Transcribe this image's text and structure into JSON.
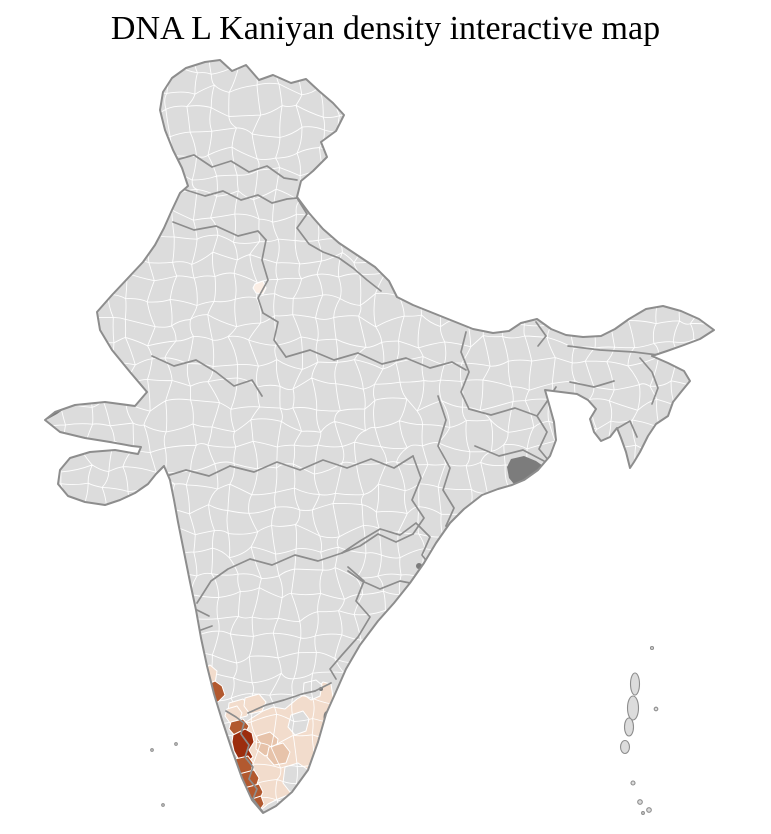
{
  "title": "DNA L Kaniyan density interactive map",
  "map": {
    "type": "choropleth",
    "subject": "district density map of India",
    "sea_color": "#ffffff",
    "land_color": "#dcdcdc",
    "district_border_color": "#ffffff",
    "state_border_color": "#8d8d8d",
    "coast_border_color": "#8d8d8d",
    "water_body_color": "#7c7c7c",
    "palette": {
      "none": "#dcdcdc",
      "trace": "#fbeee5",
      "low": "#f2dccc",
      "medium_low": "#e7c3aa",
      "medium": "#b2592f",
      "high": "#9c2d0e"
    },
    "regions": [
      {
        "name": "coastal-karnataka",
        "level": "medium"
      },
      {
        "name": "coastal-karnataka-north",
        "level": "low"
      },
      {
        "name": "south-karnataka-1",
        "level": "low"
      },
      {
        "name": "south-karnataka-2",
        "level": "low"
      },
      {
        "name": "kerala-north",
        "level": "low"
      },
      {
        "name": "kerala-north-2",
        "level": "medium"
      },
      {
        "name": "kerala-northwest",
        "level": "high"
      },
      {
        "name": "kerala-central-1",
        "level": "medium"
      },
      {
        "name": "kerala-central-2",
        "level": "medium"
      },
      {
        "name": "kerala-south-1",
        "level": "medium"
      },
      {
        "name": "kerala-south-2",
        "level": "medium"
      },
      {
        "name": "tamil-nadu",
        "level": "low"
      },
      {
        "name": "tamil-nadu-interior-1",
        "level": "medium_low"
      },
      {
        "name": "tamil-nadu-interior-2",
        "level": "medium_low"
      },
      {
        "name": "tamil-nadu-southeast",
        "level": "none"
      },
      {
        "name": "tamil-nadu-northeast",
        "level": "none"
      },
      {
        "name": "tamil-nadu-east",
        "level": "none"
      },
      {
        "name": "delhi-area",
        "level": "trace"
      }
    ]
  }
}
